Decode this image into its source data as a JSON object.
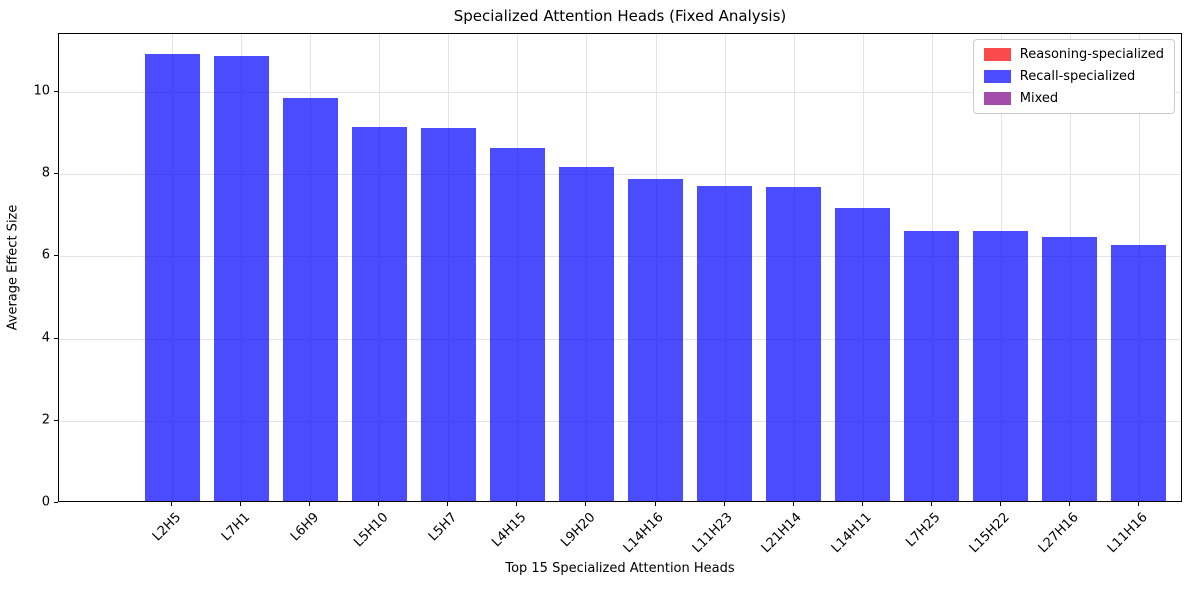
{
  "chart_data": {
    "type": "bar",
    "title": "Specialized Attention Heads (Fixed Analysis)",
    "xlabel": "Top 15 Specialized Attention Heads",
    "ylabel": "Average Effect Size",
    "categories": [
      "L2H5",
      "L7H1",
      "L6H9",
      "L5H10",
      "L5H7",
      "L4H15",
      "L9H20",
      "L14H16",
      "L11H23",
      "L21H14",
      "L14H11",
      "L7H25",
      "L15H22",
      "L27H16",
      "L11H16"
    ],
    "values": [
      10.88,
      10.82,
      9.8,
      9.11,
      9.07,
      8.59,
      8.13,
      7.84,
      7.66,
      7.63,
      7.12,
      6.57,
      6.56,
      6.42,
      6.24
    ],
    "series_note": "all bars are Recall-specialized (blue)",
    "yticks": [
      0,
      2,
      4,
      6,
      8,
      10
    ],
    "ylim": [
      0,
      11.41
    ],
    "grid": true,
    "legend": {
      "position": "upper-right",
      "entries": [
        {
          "label": "Reasoning-specialized",
          "color": "#f94b4b"
        },
        {
          "label": "Recall-specialized",
          "color": "#4d4dff"
        },
        {
          "label": "Mixed",
          "color": "#a44caa"
        }
      ]
    },
    "colors": {
      "bar_fill": "rgba(0,0,255,0.7)",
      "grid": "#e4e4e4",
      "spine": "#000000",
      "background": "#ffffff"
    }
  }
}
